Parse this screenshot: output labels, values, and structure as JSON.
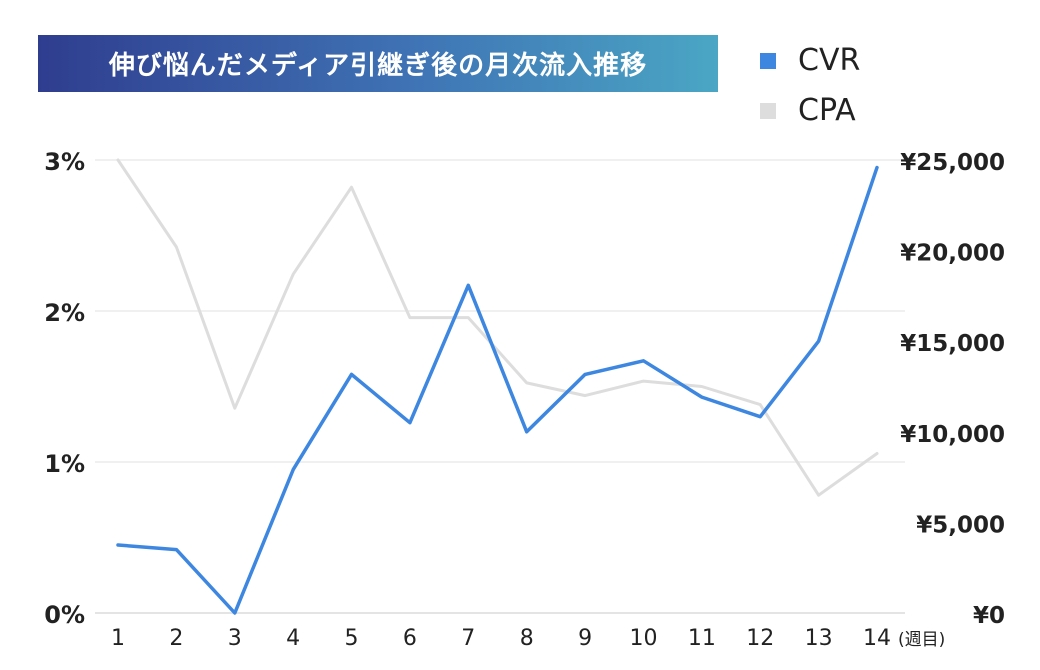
{
  "chart_data": {
    "type": "line",
    "title": "伸び悩んだメディア引継ぎ後の月次流入推移",
    "x": [
      1,
      2,
      3,
      4,
      5,
      6,
      7,
      8,
      9,
      10,
      11,
      12,
      13,
      14
    ],
    "x_tick_labels": [
      "1",
      "2",
      "3",
      "4",
      "5",
      "6",
      "7",
      "8",
      "9",
      "10",
      "11",
      "12",
      "13",
      "14"
    ],
    "x_unit_label": "(週目)",
    "series": [
      {
        "name": "CVR",
        "axis": "left",
        "color": "#3d87e0",
        "values": [
          0.45,
          0.42,
          0.0,
          0.95,
          1.58,
          1.26,
          2.17,
          1.2,
          1.58,
          1.67,
          1.43,
          1.3,
          1.8,
          2.95
        ]
      },
      {
        "name": "CPA",
        "axis": "right",
        "color": "#dddddd",
        "values": [
          25000,
          20200,
          11300,
          18700,
          23500,
          16300,
          16300,
          12700,
          12000,
          12800,
          12500,
          11500,
          6500,
          8800
        ]
      }
    ],
    "left_axis": {
      "min": 0,
      "max": 3,
      "ticks": [
        0,
        1,
        2,
        3
      ],
      "tick_labels": [
        "0%",
        "1%",
        "2%",
        "3%"
      ]
    },
    "right_axis": {
      "min": 0,
      "max": 25000,
      "ticks": [
        0,
        5000,
        10000,
        15000,
        20000,
        25000
      ],
      "tick_labels": [
        "¥0",
        "¥5,000",
        "¥10,000",
        "¥15,000",
        "¥20,000",
        "¥25,000"
      ]
    },
    "grid": true,
    "legend_position": "top-right"
  }
}
